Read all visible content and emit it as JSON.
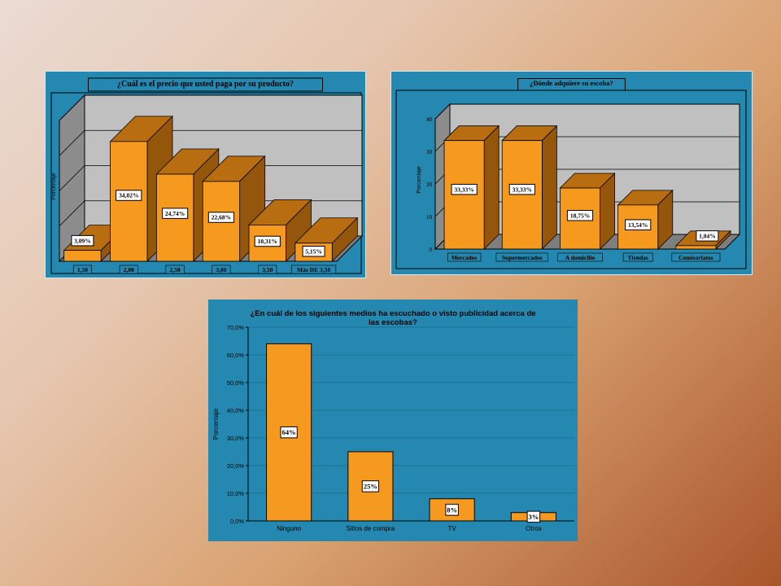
{
  "colors": {
    "panel": "#2488b0",
    "plot": "#c0c0c0",
    "wall": "#8c8c8c",
    "floor": "#7e7e7e",
    "bar_front": "#f6991f",
    "bar_top": "#b86e10",
    "bar_side": "#94560a",
    "grid": "#1e6f93"
  },
  "chart_data": [
    {
      "type": "bar",
      "title": "¿Cuál es el precio que usted paga por su producto?",
      "ylabel": "Porcentaje",
      "categories": [
        "1,50",
        "2,00",
        "2,50",
        "3,00",
        "3,50",
        "Más DE 3,50"
      ],
      "values": [
        3.09,
        34.02,
        24.74,
        22.68,
        10.31,
        5.15
      ],
      "data_labels": [
        "3,09%",
        "34,02%",
        "24,74%",
        "22,68%",
        "10,31%",
        "5,15%"
      ],
      "ylim": [
        0,
        40
      ],
      "style": "3d",
      "grid": true
    },
    {
      "type": "bar",
      "title": "¿Dónde adquiere su escoba?",
      "ylabel": "Porcentaje",
      "categories": [
        "Mercados",
        "Supermercados",
        "A domicilio",
        "Tiendas",
        "Comisariatos"
      ],
      "values": [
        33.33,
        33.33,
        18.75,
        13.54,
        1.04
      ],
      "data_labels": [
        "33,33%",
        "33,33%",
        "18,75%",
        "13,54%",
        "1,04%"
      ],
      "yticks": [
        "0",
        "10",
        "20",
        "30",
        "40"
      ],
      "ylim": [
        0,
        40
      ],
      "style": "3d",
      "grid": true
    },
    {
      "type": "bar",
      "title": "¿En cuál de los siguientes medios ha escuchado o visto publicidad acerca de las escobas?",
      "ylabel": "Porcentaje",
      "categories": [
        "Ninguno",
        "Sitios de compra",
        "TV",
        "Otros"
      ],
      "values": [
        64,
        25,
        8,
        3
      ],
      "data_labels": [
        "64%",
        "25%",
        "8%",
        "3%"
      ],
      "yticks": [
        "0,0%",
        "10,0%",
        "20,0%",
        "30,0%",
        "40,0%",
        "50,0%",
        "60,0%",
        "70,0%"
      ],
      "ylim": [
        0,
        70
      ],
      "style": "2d",
      "grid": true
    }
  ]
}
